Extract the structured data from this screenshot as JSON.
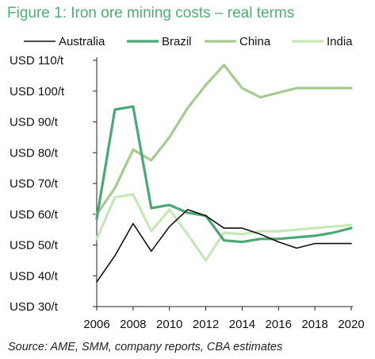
{
  "title": "Figure 1: Iron ore mining costs – real terms",
  "source": "Source: AME, SMM, company reports, CBA estimates",
  "chart_data": {
    "type": "line",
    "title": "Figure 1: Iron ore mining costs – real terms",
    "x": [
      2006,
      2007,
      2008,
      2009,
      2010,
      2011,
      2012,
      2013,
      2014,
      2015,
      2016,
      2017,
      2018,
      2019,
      2020
    ],
    "x_ticks": [
      "2006",
      "2008",
      "2010",
      "2012",
      "2014",
      "2016",
      "2018",
      "2020"
    ],
    "x_tick_values": [
      2006,
      2008,
      2010,
      2012,
      2014,
      2016,
      2018,
      2020
    ],
    "xlim": [
      2006,
      2020
    ],
    "ylim": [
      30,
      110
    ],
    "y_tick_values": [
      30,
      40,
      50,
      60,
      70,
      80,
      90,
      100,
      110
    ],
    "y_ticks": [
      "USD 30/t",
      "USD 40/t",
      "USD 50/t",
      "USD 60/t",
      "USD 70/t",
      "USD 80/t",
      "USD 90/t",
      "USD 100/t",
      "USD 110/t"
    ],
    "grid": false,
    "legend_position": "top",
    "series": [
      {
        "name": "Australia",
        "color": "#111111",
        "width": 1.6,
        "values": [
          38,
          46.5,
          57,
          48,
          56,
          61.5,
          59.5,
          55.5,
          55.5,
          53.5,
          51,
          49,
          50.5,
          50.5,
          50.5
        ]
      },
      {
        "name": "Brazil",
        "color": "#4aa874",
        "width": 3.2,
        "values": [
          58.5,
          94,
          95,
          62,
          63,
          60.5,
          59.5,
          51.5,
          51,
          52,
          52,
          52.5,
          53,
          54,
          55.5
        ]
      },
      {
        "name": "China",
        "color": "#a6cb91",
        "width": 3.2,
        "values": [
          60,
          68.5,
          81,
          77.5,
          85,
          94.5,
          102,
          108.5,
          101,
          98,
          99.5,
          101,
          101,
          101,
          101
        ]
      },
      {
        "name": "India",
        "color": "#c6e8b6",
        "width": 3.2,
        "values": [
          52,
          65.5,
          66.5,
          54.5,
          61.5,
          53.5,
          45,
          54,
          53.5,
          54.5,
          54.5,
          55,
          55.5,
          56,
          56.5
        ]
      }
    ]
  }
}
